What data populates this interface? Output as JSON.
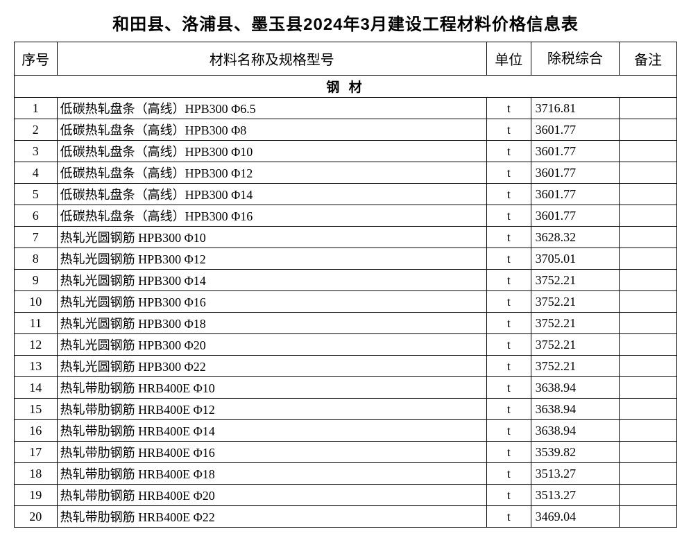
{
  "title": "和田县、洛浦县、墨玉县2024年3月建设工程材料价格信息表",
  "headers": {
    "seq": "序号",
    "name": "材料名称及规格型号",
    "unit": "单位",
    "price": "除税综合",
    "note": "备注"
  },
  "section_title": "钢 材",
  "table_style": {
    "border_color": "#000000",
    "background_color": "#ffffff",
    "text_color": "#000000",
    "title_fontsize": 24,
    "header_fontsize": 20,
    "body_fontsize": 18,
    "border_width": 1.5,
    "font_family": "SimSun"
  },
  "column_widths": {
    "seq": 58,
    "name": 583,
    "unit": 60,
    "price": 120,
    "note": 78
  },
  "rows": [
    {
      "seq": "1",
      "name": "低碳热轧盘条（高线）HPB300 Φ6.5",
      "unit": "t",
      "price": "3716.81",
      "note": ""
    },
    {
      "seq": "2",
      "name": "低碳热轧盘条（高线）HPB300 Φ8",
      "unit": "t",
      "price": "3601.77",
      "note": ""
    },
    {
      "seq": "3",
      "name": "低碳热轧盘条（高线）HPB300 Φ10",
      "unit": "t",
      "price": "3601.77",
      "note": ""
    },
    {
      "seq": "4",
      "name": "低碳热轧盘条（高线）HPB300 Φ12",
      "unit": "t",
      "price": "3601.77",
      "note": ""
    },
    {
      "seq": "5",
      "name": "低碳热轧盘条（高线）HPB300 Φ14",
      "unit": "t",
      "price": "3601.77",
      "note": ""
    },
    {
      "seq": "6",
      "name": "低碳热轧盘条（高线）HPB300 Φ16",
      "unit": "t",
      "price": "3601.77",
      "note": ""
    },
    {
      "seq": "7",
      "name": "热轧光圆钢筋 HPB300 Φ10",
      "unit": "t",
      "price": "3628.32",
      "note": ""
    },
    {
      "seq": "8",
      "name": "热轧光圆钢筋 HPB300 Φ12",
      "unit": "t",
      "price": "3705.01",
      "note": ""
    },
    {
      "seq": "9",
      "name": "热轧光圆钢筋 HPB300 Φ14",
      "unit": "t",
      "price": "3752.21",
      "note": ""
    },
    {
      "seq": "10",
      "name": "热轧光圆钢筋 HPB300 Φ16",
      "unit": "t",
      "price": "3752.21",
      "note": ""
    },
    {
      "seq": "11",
      "name": "热轧光圆钢筋 HPB300 Φ18",
      "unit": "t",
      "price": "3752.21",
      "note": ""
    },
    {
      "seq": "12",
      "name": "热轧光圆钢筋 HPB300 Φ20",
      "unit": "t",
      "price": "3752.21",
      "note": ""
    },
    {
      "seq": "13",
      "name": "热轧光圆钢筋 HPB300 Φ22",
      "unit": "t",
      "price": "3752.21",
      "note": ""
    },
    {
      "seq": "14",
      "name": "热轧带肋钢筋 HRB400E Φ10",
      "unit": "t",
      "price": "3638.94",
      "note": ""
    },
    {
      "seq": "15",
      "name": "热轧带肋钢筋 HRB400E Φ12",
      "unit": "t",
      "price": "3638.94",
      "note": ""
    },
    {
      "seq": "16",
      "name": "热轧带肋钢筋 HRB400E Φ14",
      "unit": "t",
      "price": "3638.94",
      "note": ""
    },
    {
      "seq": "17",
      "name": "热轧带肋钢筋 HRB400E Φ16",
      "unit": "t",
      "price": "3539.82",
      "note": ""
    },
    {
      "seq": "18",
      "name": "热轧带肋钢筋 HRB400E Φ18",
      "unit": "t",
      "price": "3513.27",
      "note": ""
    },
    {
      "seq": "19",
      "name": "热轧带肋钢筋 HRB400E Φ20",
      "unit": "t",
      "price": "3513.27",
      "note": ""
    },
    {
      "seq": "20",
      "name": "热轧带肋钢筋 HRB400E Φ22",
      "unit": "t",
      "price": "3469.04",
      "note": ""
    }
  ]
}
